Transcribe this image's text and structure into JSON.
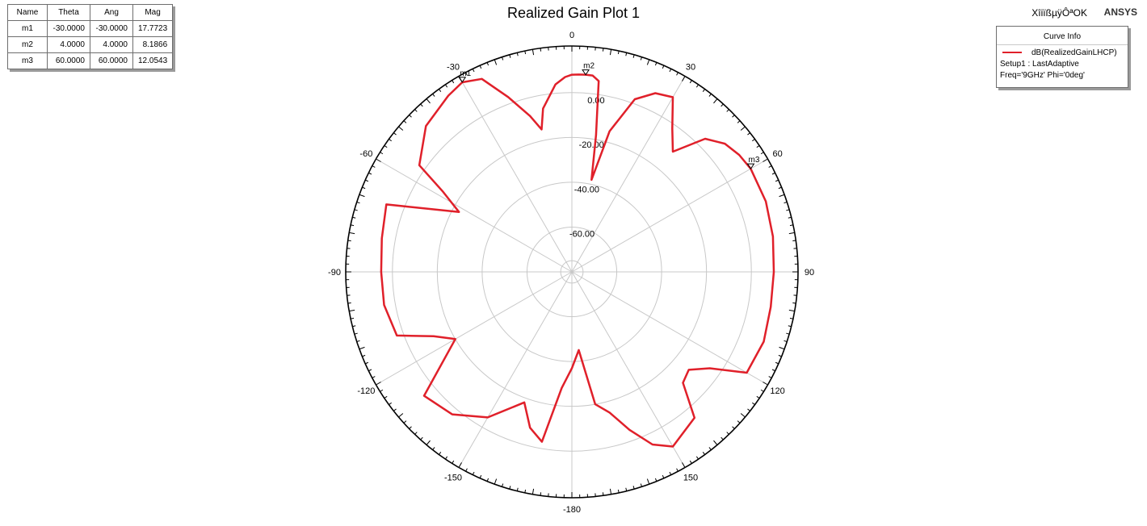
{
  "chart_data": {
    "type": "polar-line",
    "title": "Realized Gain Plot 1",
    "series": [
      {
        "name": "dB(RealizedGainLHCP)",
        "color": "#e0202a",
        "theta_deg": [
          -180,
          -175,
          -170,
          -165,
          -160,
          -150,
          -140,
          -130,
          -120,
          -115,
          -110,
          -100,
          -90,
          -80,
          -70,
          -62,
          -58,
          -55,
          -45,
          -35,
          -30,
          -25,
          -20,
          -15,
          -12,
          -10,
          -5,
          -2,
          0,
          2,
          4,
          6,
          8,
          10,
          12,
          15,
          20,
          25,
          30,
          35,
          40,
          45,
          50,
          55,
          60,
          70,
          80,
          90,
          100,
          110,
          120,
          125,
          130,
          135,
          140,
          150,
          155,
          160,
          165,
          170,
          175,
          180
        ],
        "gain_db": [
          -37,
          -28,
          -3,
          -8,
          -18,
          -5,
          3,
          6,
          -20,
          -12,
          3,
          5,
          5,
          6,
          8,
          -23,
          -12,
          3,
          12,
          16,
          17.7,
          15,
          3,
          -8,
          -15,
          -6,
          4,
          7,
          8,
          8.1,
          8.2,
          8.1,
          6,
          -18,
          -38,
          -15,
          2,
          8,
          10,
          -2,
          -10,
          4,
          9,
          11,
          12.05,
          12,
          11,
          10,
          10,
          11,
          10,
          -5,
          -12,
          -10,
          5,
          10,
          5,
          -5,
          -15,
          -20,
          -45,
          -37
        ]
      }
    ],
    "radial_ticks": [
      0.0,
      -20.0,
      -40.0,
      -60.0
    ],
    "radial_tick_labels": [
      "0.00",
      "-20.00",
      "-40.00",
      "-60.00"
    ],
    "r_range": [
      -80,
      10
    ],
    "angle_labels": [
      "0",
      "30",
      "60",
      "90",
      "120",
      "150",
      "-180",
      "-150",
      "-120",
      "-90",
      "-60",
      "-30"
    ],
    "angle_values": [
      0,
      30,
      60,
      90,
      120,
      150,
      180,
      -150,
      -120,
      -90,
      -60,
      -30
    ],
    "markers": [
      {
        "name": "m1",
        "theta": -30,
        "gain": 17.7723
      },
      {
        "name": "m2",
        "theta": 4,
        "gain": 8.1866
      },
      {
        "name": "m3",
        "theta": 60,
        "gain": 12.0543
      }
    ]
  },
  "marker_table": {
    "headers": [
      "Name",
      "Theta",
      "Ang",
      "Mag"
    ],
    "rows": [
      [
        "m1",
        "-30.0000",
        "-30.0000",
        "17.7723"
      ],
      [
        "m2",
        "4.0000",
        "4.0000",
        "8.1866"
      ],
      [
        "m3",
        "60.0000",
        "60.0000",
        "12.0543"
      ]
    ]
  },
  "curve_info": {
    "header": "Curve Info",
    "trace": "dB(RealizedGainLHCP)",
    "setup": "Setup1 : LastAdaptive",
    "sweep": "Freq='9GHz' Phi='0deg'"
  },
  "brand": {
    "zone_text": "XîiïßµÿÔªOK",
    "company": "ANSYS"
  }
}
